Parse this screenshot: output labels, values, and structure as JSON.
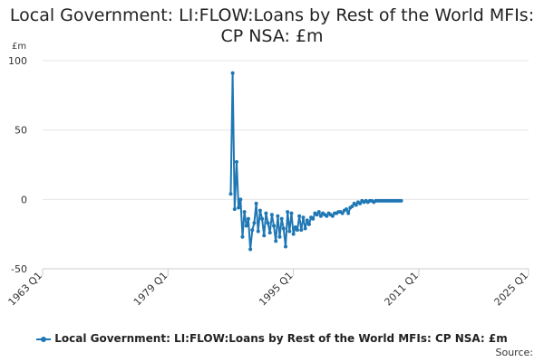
{
  "chart_data": {
    "type": "line",
    "title": "Local Government: LI:FLOW:Loans by Rest of the World MFIs: CP NSA: £m",
    "ylabel": "£m",
    "ylim": [
      -50,
      100
    ],
    "yticks": [
      "100",
      "50",
      "0",
      "-50"
    ],
    "ytick_values": [
      100,
      50,
      0,
      -50
    ],
    "xlim": [
      1963,
      2025
    ],
    "xticks": [
      "1963 Q1",
      "1979 Q1",
      "1995 Q1",
      "2011 Q1",
      "2025 Q1"
    ],
    "xtick_values": [
      1963,
      1979,
      1995,
      2011,
      2025
    ],
    "grid": true,
    "legend_position": "bottom",
    "series": [
      {
        "name": "Local Government: LI:FLOW:Loans by Rest of the World MFIs: CP NSA: £m",
        "x": [
          1987.0,
          1987.25,
          1987.5,
          1987.75,
          1988.0,
          1988.25,
          1988.5,
          1988.75,
          1989.0,
          1989.25,
          1989.5,
          1989.75,
          1990.0,
          1990.25,
          1990.5,
          1990.75,
          1991.0,
          1991.25,
          1991.5,
          1991.75,
          1992.0,
          1992.25,
          1992.5,
          1992.75,
          1993.0,
          1993.25,
          1993.5,
          1993.75,
          1994.0,
          1994.25,
          1994.5,
          1994.75,
          1995.0,
          1995.25,
          1995.5,
          1995.75,
          1996.0,
          1996.25,
          1996.5,
          1996.75,
          1997.0,
          1997.25,
          1997.5,
          1997.75,
          1998.0,
          1998.25,
          1998.5,
          1998.75,
          1999.0,
          1999.25,
          1999.5,
          1999.75,
          2000.0,
          2000.25,
          2000.5,
          2000.75,
          2001.0,
          2001.25,
          2001.5,
          2001.75,
          2002.0,
          2002.25,
          2002.5,
          2002.75,
          2003.0,
          2003.25,
          2003.5,
          2003.75,
          2004.0,
          2004.25,
          2004.5,
          2004.75,
          2005.0,
          2005.25,
          2005.5,
          2005.75,
          2006.0,
          2006.25,
          2006.5,
          2006.75,
          2007.0,
          2007.25,
          2007.5,
          2007.75,
          2008.0,
          2008.25,
          2008.5,
          2008.75
        ],
        "values": [
          4,
          91,
          -7,
          27,
          -6,
          0,
          -27,
          -9,
          -19,
          -14,
          -36,
          -22,
          -17,
          -3,
          -23,
          -8,
          -14,
          -26,
          -10,
          -17,
          -24,
          -11,
          -19,
          -30,
          -12,
          -27,
          -14,
          -21,
          -34,
          -9,
          -23,
          -10,
          -25,
          -20,
          -22,
          -12,
          -22,
          -13,
          -21,
          -15,
          -18,
          -13,
          -14,
          -10,
          -11,
          -9,
          -12,
          -10,
          -11,
          -12,
          -10,
          -11,
          -12,
          -10,
          -10,
          -9,
          -9,
          -10,
          -8,
          -7,
          -10,
          -6,
          -5,
          -3,
          -4,
          -2,
          -3,
          -1,
          -2,
          -1,
          -2,
          -1,
          -1,
          -2,
          -1,
          -1,
          -1,
          -1,
          -1,
          -1,
          -1,
          -1,
          -1,
          -1,
          -1,
          -1,
          -1,
          -1
        ]
      }
    ],
    "colors": {
      "series": "#1f77b4",
      "grid": "#e6e6e6",
      "axis": "#cccccc",
      "text": "#333333"
    }
  },
  "legend": {
    "label": "Local Government: LI:FLOW:Loans by Rest of the World MFIs: CP NSA: £m"
  },
  "footer": {
    "source_label": "Source:"
  }
}
